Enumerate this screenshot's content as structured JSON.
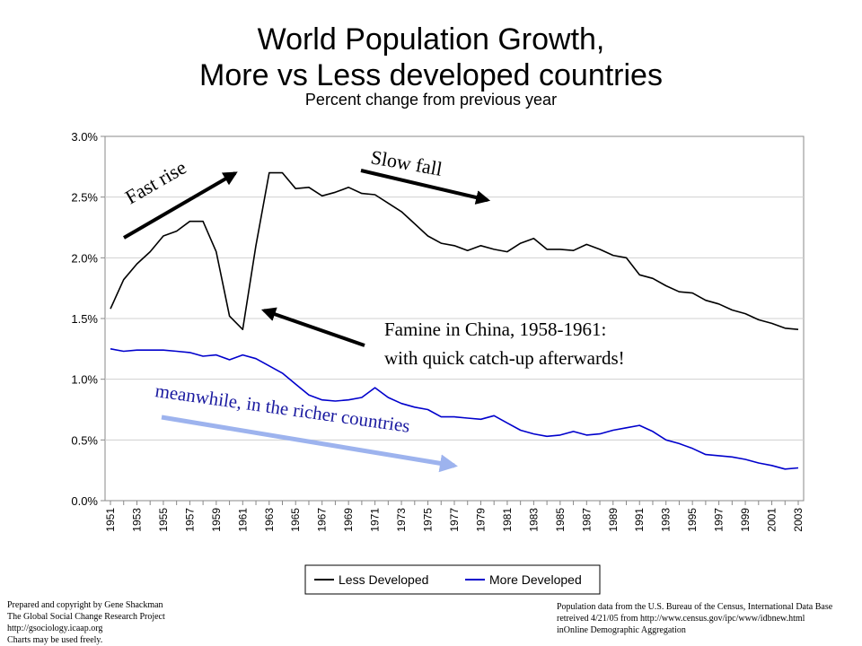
{
  "chart_data": {
    "type": "line",
    "title": "World Population Growth,\nMore vs Less developed countries",
    "title_lines": [
      "World Population Growth,",
      "More vs Less developed countries"
    ],
    "subtitle": "Percent change from previous year",
    "xlabel": "",
    "ylabel": "",
    "ylim": [
      0,
      0.03
    ],
    "xlim": [
      1951,
      2003
    ],
    "y_ticks": [
      "0.0%",
      "0.5%",
      "1.0%",
      "1.5%",
      "2.0%",
      "2.5%",
      "3.0%"
    ],
    "x_ticks": [
      "1951",
      "1953",
      "1955",
      "1957",
      "1959",
      "1961",
      "1963",
      "1965",
      "1967",
      "1969",
      "1971",
      "1973",
      "1975",
      "1977",
      "1979",
      "1981",
      "1983",
      "1985",
      "1987",
      "1989",
      "1991",
      "1993",
      "1995",
      "1997",
      "1999",
      "2001",
      "2003"
    ],
    "grid": "horizontal",
    "legend_placement": "bottom",
    "x": [
      1951,
      1952,
      1953,
      1954,
      1955,
      1956,
      1957,
      1958,
      1959,
      1960,
      1961,
      1962,
      1963,
      1964,
      1965,
      1966,
      1967,
      1968,
      1969,
      1970,
      1971,
      1972,
      1973,
      1974,
      1975,
      1976,
      1977,
      1978,
      1979,
      1980,
      1981,
      1982,
      1983,
      1984,
      1985,
      1986,
      1987,
      1988,
      1989,
      1990,
      1991,
      1992,
      1993,
      1994,
      1995,
      1996,
      1997,
      1998,
      1999,
      2000,
      2001,
      2002,
      2003
    ],
    "series": [
      {
        "name": "Less Developed",
        "color": "#000000",
        "values": [
          0.0158,
          0.0182,
          0.0195,
          0.0205,
          0.0218,
          0.0222,
          0.023,
          0.023,
          0.0205,
          0.0152,
          0.0141,
          0.021,
          0.027,
          0.027,
          0.0257,
          0.0258,
          0.0251,
          0.0254,
          0.0258,
          0.0253,
          0.0252,
          0.0245,
          0.0238,
          0.0228,
          0.0218,
          0.0212,
          0.021,
          0.0206,
          0.021,
          0.0207,
          0.0205,
          0.0212,
          0.0216,
          0.0207,
          0.0207,
          0.0206,
          0.0211,
          0.0207,
          0.0202,
          0.02,
          0.0186,
          0.0183,
          0.0177,
          0.0172,
          0.0171,
          0.0165,
          0.0162,
          0.0157,
          0.0154,
          0.0149,
          0.0146,
          0.0142,
          0.0141
        ]
      },
      {
        "name": "More Developed",
        "color": "#0000cc",
        "values": [
          0.0125,
          0.0123,
          0.0124,
          0.0124,
          0.0124,
          0.0123,
          0.0122,
          0.0119,
          0.012,
          0.0116,
          0.012,
          0.0117,
          0.0111,
          0.0105,
          0.0096,
          0.0087,
          0.0083,
          0.0082,
          0.0083,
          0.0085,
          0.0093,
          0.0085,
          0.008,
          0.0077,
          0.0075,
          0.0069,
          0.0069,
          0.0068,
          0.0067,
          0.007,
          0.0064,
          0.0058,
          0.0055,
          0.0053,
          0.0054,
          0.0057,
          0.0054,
          0.0055,
          0.0058,
          0.006,
          0.0062,
          0.0057,
          0.005,
          0.0047,
          0.0043,
          0.0038,
          0.0037,
          0.0036,
          0.0034,
          0.0031,
          0.0029,
          0.0026,
          0.0027
        ]
      }
    ],
    "annotations": {
      "fast_rise": "Fast rise",
      "slow_fall": "Slow fall",
      "famine_line1": "Famine in China, 1958-1961:",
      "famine_line2": "with quick catch-up afterwards!",
      "meanwhile": "meanwhile, in the richer countries"
    }
  },
  "credits": {
    "left": [
      "Prepared and copyright by Gene Shackman",
      "The Global Social Change Research Project",
      "http://gsociology.icaap.org",
      "Charts may be used freely."
    ],
    "right": [
      "Population data from the U.S. Bureau of the Census, International Data Base",
      "retreived 4/21/05 from http://www.census.gov/ipc/www/idbnew.html",
      "inOnline Demographic Aggregation"
    ]
  }
}
